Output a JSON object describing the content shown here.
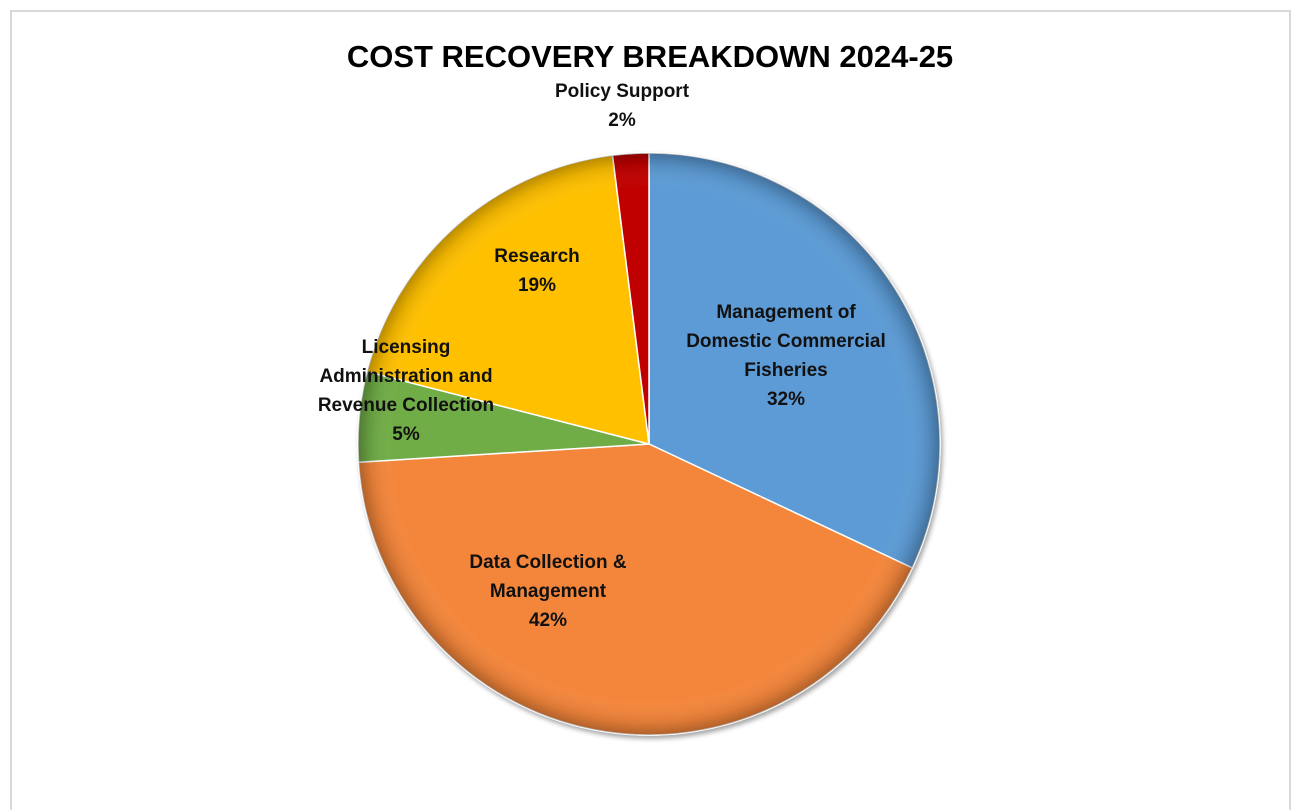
{
  "chart_data": {
    "type": "pie",
    "title": "COST RECOVERY BREAKDOWN 2024-25",
    "slices": [
      {
        "name_lines": [
          "Management of",
          "Domestic Commercial",
          "Fisheries"
        ],
        "percent_label": "32%",
        "value": 32,
        "color": "#5b9bd5"
      },
      {
        "name_lines": [
          "Data Collection &",
          "Management"
        ],
        "percent_label": "42%",
        "value": 42,
        "color": "#f4863b"
      },
      {
        "name_lines": [
          "Licensing",
          "Administration and",
          "Revenue Collection"
        ],
        "percent_label": "5%",
        "value": 5,
        "color": "#70ad47"
      },
      {
        "name_lines": [
          "Research"
        ],
        "percent_label": "19%",
        "value": 19,
        "color": "#ffc000"
      },
      {
        "name_lines": [
          "Policy Support"
        ],
        "percent_label": "2%",
        "value": 2,
        "color": "#c00000"
      }
    ],
    "start_angle_deg": 0,
    "direction": "clockwise",
    "legend": "none",
    "data_labels": "category and percentage"
  }
}
